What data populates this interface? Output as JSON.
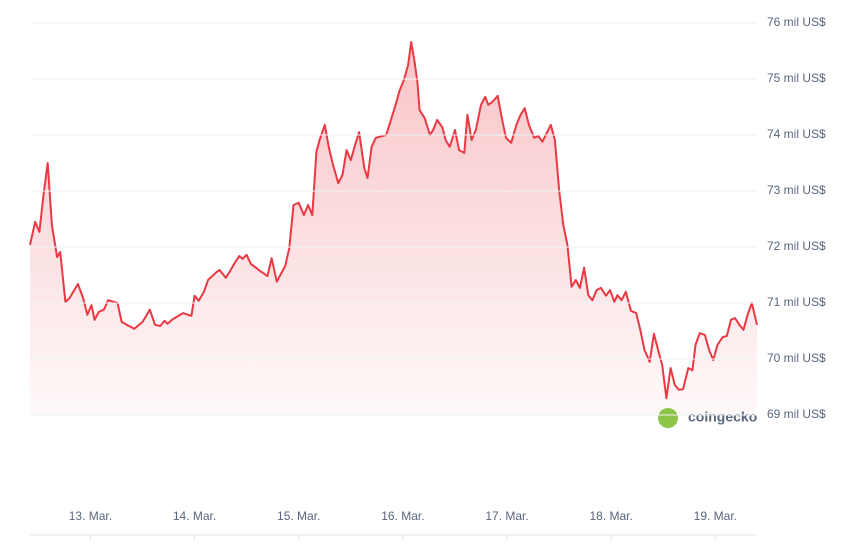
{
  "chart_data": {
    "type": "line",
    "watermark": "coingecko",
    "x": [
      12.42,
      12.47,
      12.51,
      12.55,
      12.59,
      12.63,
      12.68,
      12.71,
      12.76,
      12.8,
      12.88,
      12.93,
      12.97,
      13.01,
      13.04,
      13.08,
      13.13,
      13.17,
      13.26,
      13.3,
      13.42,
      13.5,
      13.57,
      13.62,
      13.67,
      13.71,
      13.74,
      13.79,
      13.89,
      13.97,
      14.0,
      14.04,
      14.09,
      14.13,
      14.21,
      14.24,
      14.3,
      14.34,
      14.39,
      14.43,
      14.46,
      14.5,
      14.54,
      14.63,
      14.7,
      14.74,
      14.79,
      14.87,
      14.91,
      14.95,
      15.0,
      15.05,
      15.09,
      15.13,
      15.17,
      15.2,
      15.25,
      15.29,
      15.33,
      15.38,
      15.42,
      15.46,
      15.5,
      15.54,
      15.58,
      15.63,
      15.66,
      15.7,
      15.74,
      15.84,
      15.9,
      15.93,
      15.97,
      16.01,
      16.05,
      16.08,
      16.11,
      16.14,
      16.16,
      16.21,
      16.26,
      16.29,
      16.33,
      16.38,
      16.41,
      16.45,
      16.5,
      16.54,
      16.59,
      16.62,
      16.66,
      16.7,
      16.75,
      16.79,
      16.82,
      16.86,
      16.91,
      16.95,
      16.99,
      17.04,
      17.09,
      17.13,
      17.17,
      17.21,
      17.26,
      17.3,
      17.34,
      17.42,
      17.46,
      17.5,
      17.54,
      17.58,
      17.62,
      17.66,
      17.7,
      17.74,
      17.78,
      17.82,
      17.86,
      17.9,
      17.95,
      17.99,
      18.03,
      18.06,
      18.1,
      18.14,
      18.19,
      18.24,
      18.28,
      18.32,
      18.37,
      18.41,
      18.45,
      18.49,
      18.53,
      18.57,
      18.61,
      18.65,
      18.69,
      18.74,
      18.78,
      18.81,
      18.85,
      18.9,
      18.94,
      18.98,
      19.02,
      19.07,
      19.11,
      19.15,
      19.19,
      19.23,
      19.27,
      19.31,
      19.35,
      19.4
    ],
    "series": [
      {
        "color": "#ea3943",
        "values": [
          72.04,
          72.45,
          72.27,
          72.93,
          73.5,
          72.39,
          71.82,
          71.91,
          71.02,
          71.09,
          71.34,
          71.09,
          70.79,
          70.96,
          70.7,
          70.84,
          70.88,
          71.05,
          71.0,
          70.66,
          70.54,
          70.66,
          70.88,
          70.61,
          70.59,
          70.68,
          70.63,
          70.71,
          70.82,
          70.77,
          71.13,
          71.04,
          71.2,
          71.41,
          71.55,
          71.59,
          71.45,
          71.57,
          71.73,
          71.84,
          71.79,
          71.86,
          71.7,
          71.57,
          71.48,
          71.8,
          71.38,
          71.66,
          71.98,
          72.75,
          72.79,
          72.57,
          72.75,
          72.57,
          73.7,
          73.91,
          74.18,
          73.77,
          73.46,
          73.14,
          73.29,
          73.73,
          73.55,
          73.82,
          74.05,
          73.41,
          73.23,
          73.79,
          73.95,
          74.0,
          74.36,
          74.54,
          74.8,
          74.98,
          75.25,
          75.66,
          75.34,
          74.93,
          74.45,
          74.3,
          74.0,
          74.09,
          74.27,
          74.13,
          73.91,
          73.79,
          74.09,
          73.73,
          73.68,
          74.36,
          73.91,
          74.09,
          74.54,
          74.68,
          74.54,
          74.59,
          74.7,
          74.3,
          73.95,
          73.86,
          74.18,
          74.36,
          74.48,
          74.18,
          73.95,
          73.98,
          73.88,
          74.18,
          73.91,
          73.02,
          72.39,
          72.04,
          71.29,
          71.41,
          71.27,
          71.63,
          71.14,
          71.05,
          71.23,
          71.27,
          71.13,
          71.23,
          71.02,
          71.14,
          71.05,
          71.2,
          70.86,
          70.82,
          70.52,
          70.16,
          69.95,
          70.45,
          70.16,
          69.89,
          69.3,
          69.84,
          69.54,
          69.45,
          69.46,
          69.84,
          69.8,
          70.25,
          70.46,
          70.43,
          70.16,
          69.98,
          70.25,
          70.39,
          70.41,
          70.7,
          70.73,
          70.61,
          70.52,
          70.79,
          71.0,
          70.61
        ]
      }
    ],
    "xlim": [
      12.42,
      19.4
    ],
    "xticks": [
      {
        "value": 13,
        "label": "13. Mar."
      },
      {
        "value": 14,
        "label": "14. Mar."
      },
      {
        "value": 15,
        "label": "15. Mar."
      },
      {
        "value": 16,
        "label": "16. Mar."
      },
      {
        "value": 17,
        "label": "17. Mar."
      },
      {
        "value": 18,
        "label": "18. Mar."
      },
      {
        "value": 19,
        "label": "19. Mar."
      }
    ],
    "ylim": [
      69,
      76
    ],
    "yticks": [
      {
        "value": 69,
        "label": "69 mil US$"
      },
      {
        "value": 70,
        "label": "70 mil US$"
      },
      {
        "value": 71,
        "label": "71 mil US$"
      },
      {
        "value": 72,
        "label": "72 mil US$"
      },
      {
        "value": 73,
        "label": "73 mil US$"
      },
      {
        "value": 74,
        "label": "74 mil US$"
      },
      {
        "value": 75,
        "label": "75 mil US$"
      },
      {
        "value": 76,
        "label": "76 mil US$"
      }
    ],
    "grid": true
  }
}
